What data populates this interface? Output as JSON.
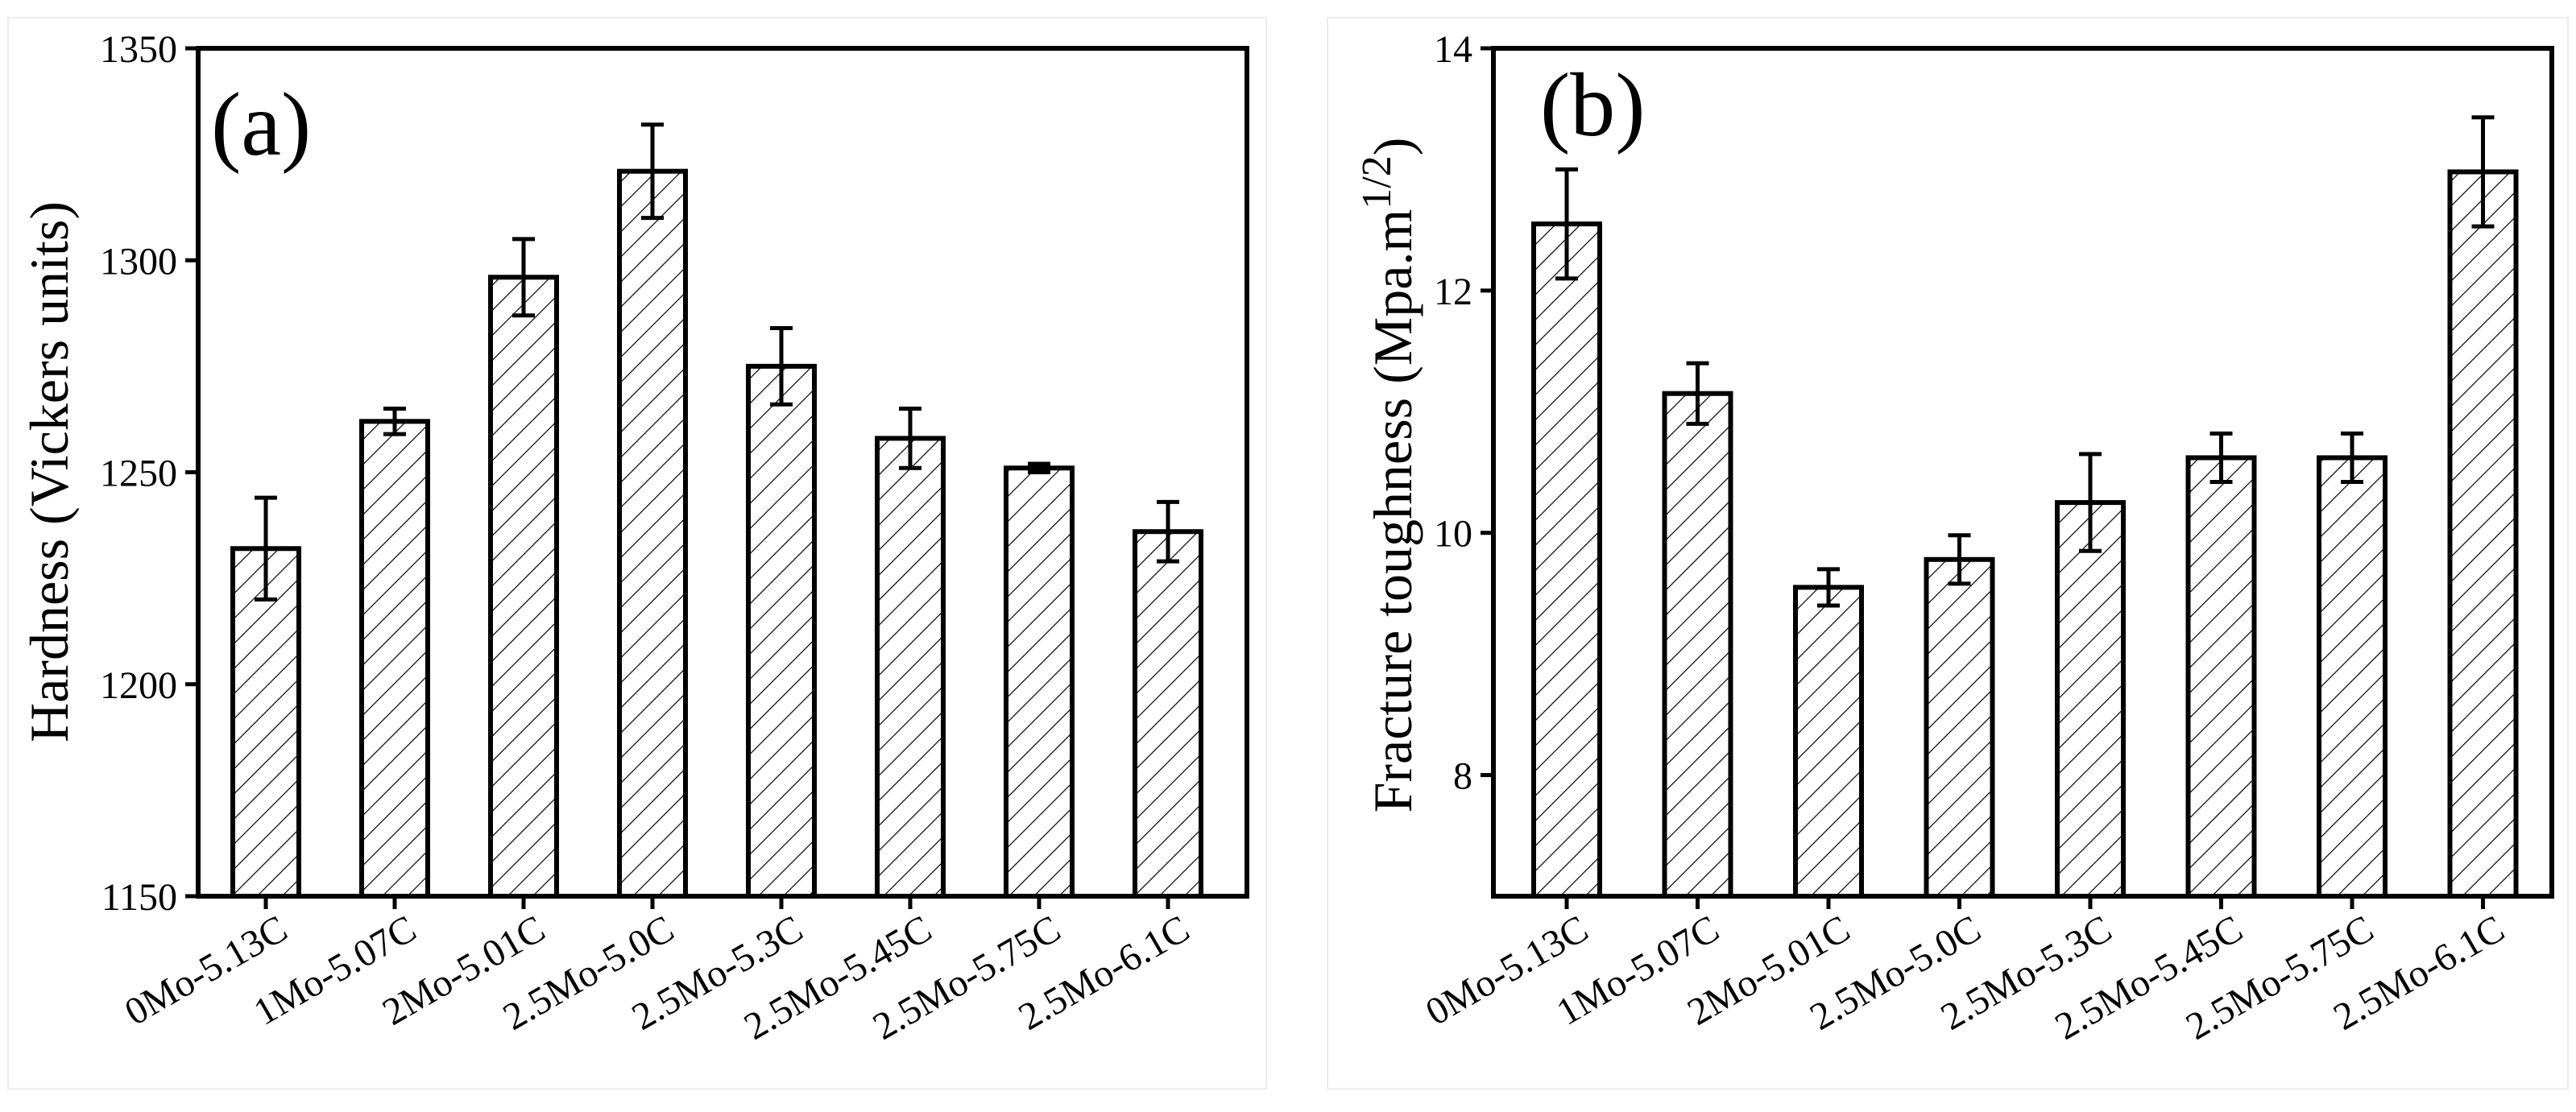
{
  "chart_data": [
    {
      "type": "bar",
      "panel_label": "(a)",
      "title": "",
      "xlabel": "",
      "ylabel": "Hardness (Vickers units)",
      "ylim": [
        1150,
        1350
      ],
      "yticks": [
        "1150",
        "1200",
        "1250",
        "1300",
        "1350"
      ],
      "categories": [
        "0Mo-5.13C",
        "1Mo-5.07C",
        "2Mo-5.01C",
        "2.5Mo-5.0C",
        "2.5Mo-5.3C",
        "2.5Mo-5.45C",
        "2.5Mo-5.75C",
        "2.5Mo-6.1C"
      ],
      "values": [
        1232,
        1262,
        1296,
        1321,
        1275,
        1258,
        1251,
        1236
      ],
      "errors": [
        12,
        3,
        9,
        11,
        9,
        7,
        1,
        7
      ],
      "bar_fill": "hatched",
      "color": "#000000"
    },
    {
      "type": "bar",
      "panel_label": "(b)",
      "title": "",
      "xlabel": "",
      "ylabel_main": "Fracture toughness (Mpa.m",
      "ylabel_sup": "1/2",
      "ylabel_close": ")",
      "ylim": [
        7,
        14
      ],
      "yticks": [
        "8",
        "10",
        "12",
        "14"
      ],
      "categories": [
        "0Mo-5.13C",
        "1Mo-5.07C",
        "2Mo-5.01C",
        "2.5Mo-5.0C",
        "2.5Mo-5.3C",
        "2.5Mo-5.45C",
        "2.5Mo-5.75C",
        "2.5Mo-6.1C"
      ],
      "values": [
        12.55,
        11.15,
        9.55,
        9.78,
        10.25,
        10.62,
        10.62,
        12.98
      ],
      "errors": [
        0.45,
        0.25,
        0.15,
        0.2,
        0.4,
        0.2,
        0.2,
        0.45
      ],
      "bar_fill": "hatched",
      "color": "#000000"
    }
  ]
}
